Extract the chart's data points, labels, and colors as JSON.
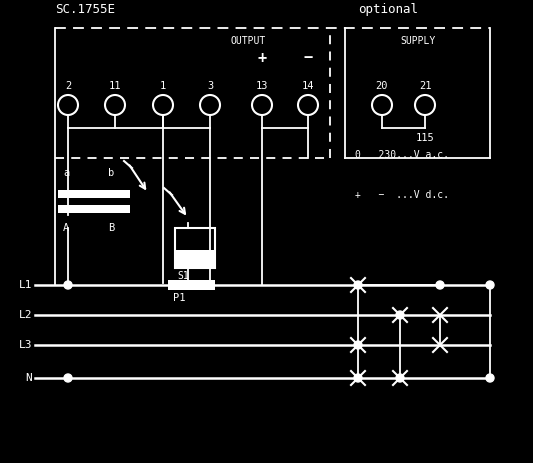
{
  "bg_color": "#000000",
  "fg_color": "#ffffff",
  "title": "SC.1755E",
  "optional_text": "optional",
  "terminal_labels": [
    "2",
    "11",
    "1",
    "3",
    "13",
    "14",
    "20",
    "21"
  ],
  "output_label": "OUTPUT",
  "supply_label": "SUPPLY",
  "v115": "115",
  "vac": "0   230...V a.c.",
  "vdc": "+   −  ...V d.c.",
  "line_labels": [
    "L1",
    "L2",
    "L3",
    "N"
  ],
  "p1_label": "P1",
  "s1_label": "S1",
  "a_label": "a",
  "b_label": "b",
  "A_label": "A",
  "B_label": "B"
}
